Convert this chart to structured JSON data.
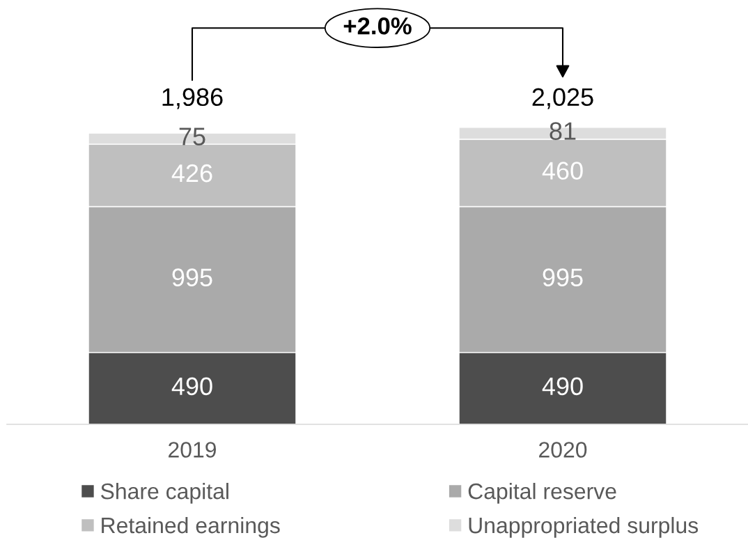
{
  "chart_data": {
    "type": "bar",
    "stacked": true,
    "categories": [
      "2019",
      "2020"
    ],
    "series": [
      {
        "name": "Share capital",
        "color": "#4d4d4d",
        "values": [
          490,
          490
        ]
      },
      {
        "name": "Capital reserve",
        "color": "#aaaaaa",
        "values": [
          995,
          995
        ]
      },
      {
        "name": "Retained earnings",
        "color": "#bfbfbf",
        "values": [
          426,
          460
        ]
      },
      {
        "name": "Unappropriated surplus",
        "color": "#dddddd",
        "values": [
          75,
          81
        ]
      }
    ],
    "data_labels": true,
    "totals": [
      "1,986",
      "2,025"
    ],
    "annotations": [
      "+2.0%"
    ],
    "tick_labels": "x",
    "legend": "bottom",
    "grid": false
  }
}
